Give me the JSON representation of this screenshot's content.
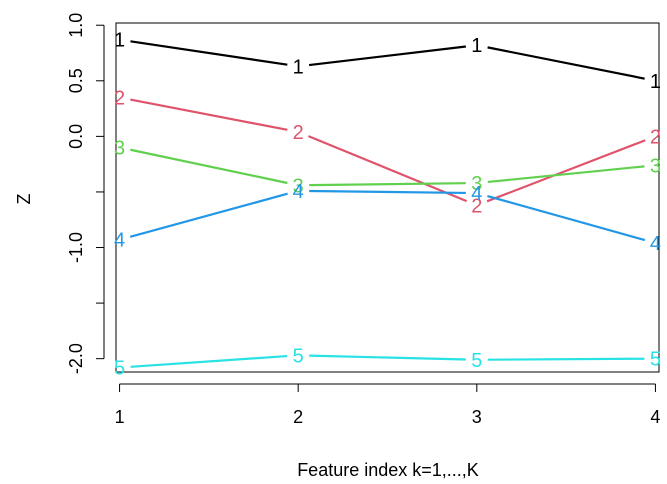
{
  "chart_data": {
    "type": "line",
    "title": "",
    "xlabel": "Feature index k=1,...,K",
    "ylabel": "Z",
    "x": [
      1,
      2,
      3,
      4
    ],
    "x_tick_labels": [
      "1",
      "2",
      "3",
      "4"
    ],
    "y_ticks": [
      1.0,
      0.5,
      0.0,
      -0.5,
      -1.0,
      -1.5,
      -2.0
    ],
    "y_tick_labels": [
      "1.0",
      "0.5",
      "0.0",
      "",
      "-1.0",
      "",
      "-2.0"
    ],
    "xlim": [
      0.98,
      4.02
    ],
    "ylim": [
      -2.12,
      1.02
    ],
    "grid": false,
    "legend": "none",
    "series": [
      {
        "label": "1",
        "color": "#000000",
        "values": [
          0.87,
          0.63,
          0.82,
          0.5
        ]
      },
      {
        "label": "2",
        "color": "#DF536B",
        "values": [
          0.35,
          0.04,
          -0.62,
          0.0
        ]
      },
      {
        "label": "3",
        "color": "#61D04F",
        "values": [
          -0.1,
          -0.44,
          -0.42,
          -0.26
        ]
      },
      {
        "label": "4",
        "color": "#2297E6",
        "values": [
          -0.93,
          -0.49,
          -0.51,
          -0.96
        ]
      },
      {
        "label": "5",
        "color": "#28E2E5",
        "values": [
          -2.08,
          -1.97,
          -2.01,
          -2.0
        ]
      }
    ]
  }
}
